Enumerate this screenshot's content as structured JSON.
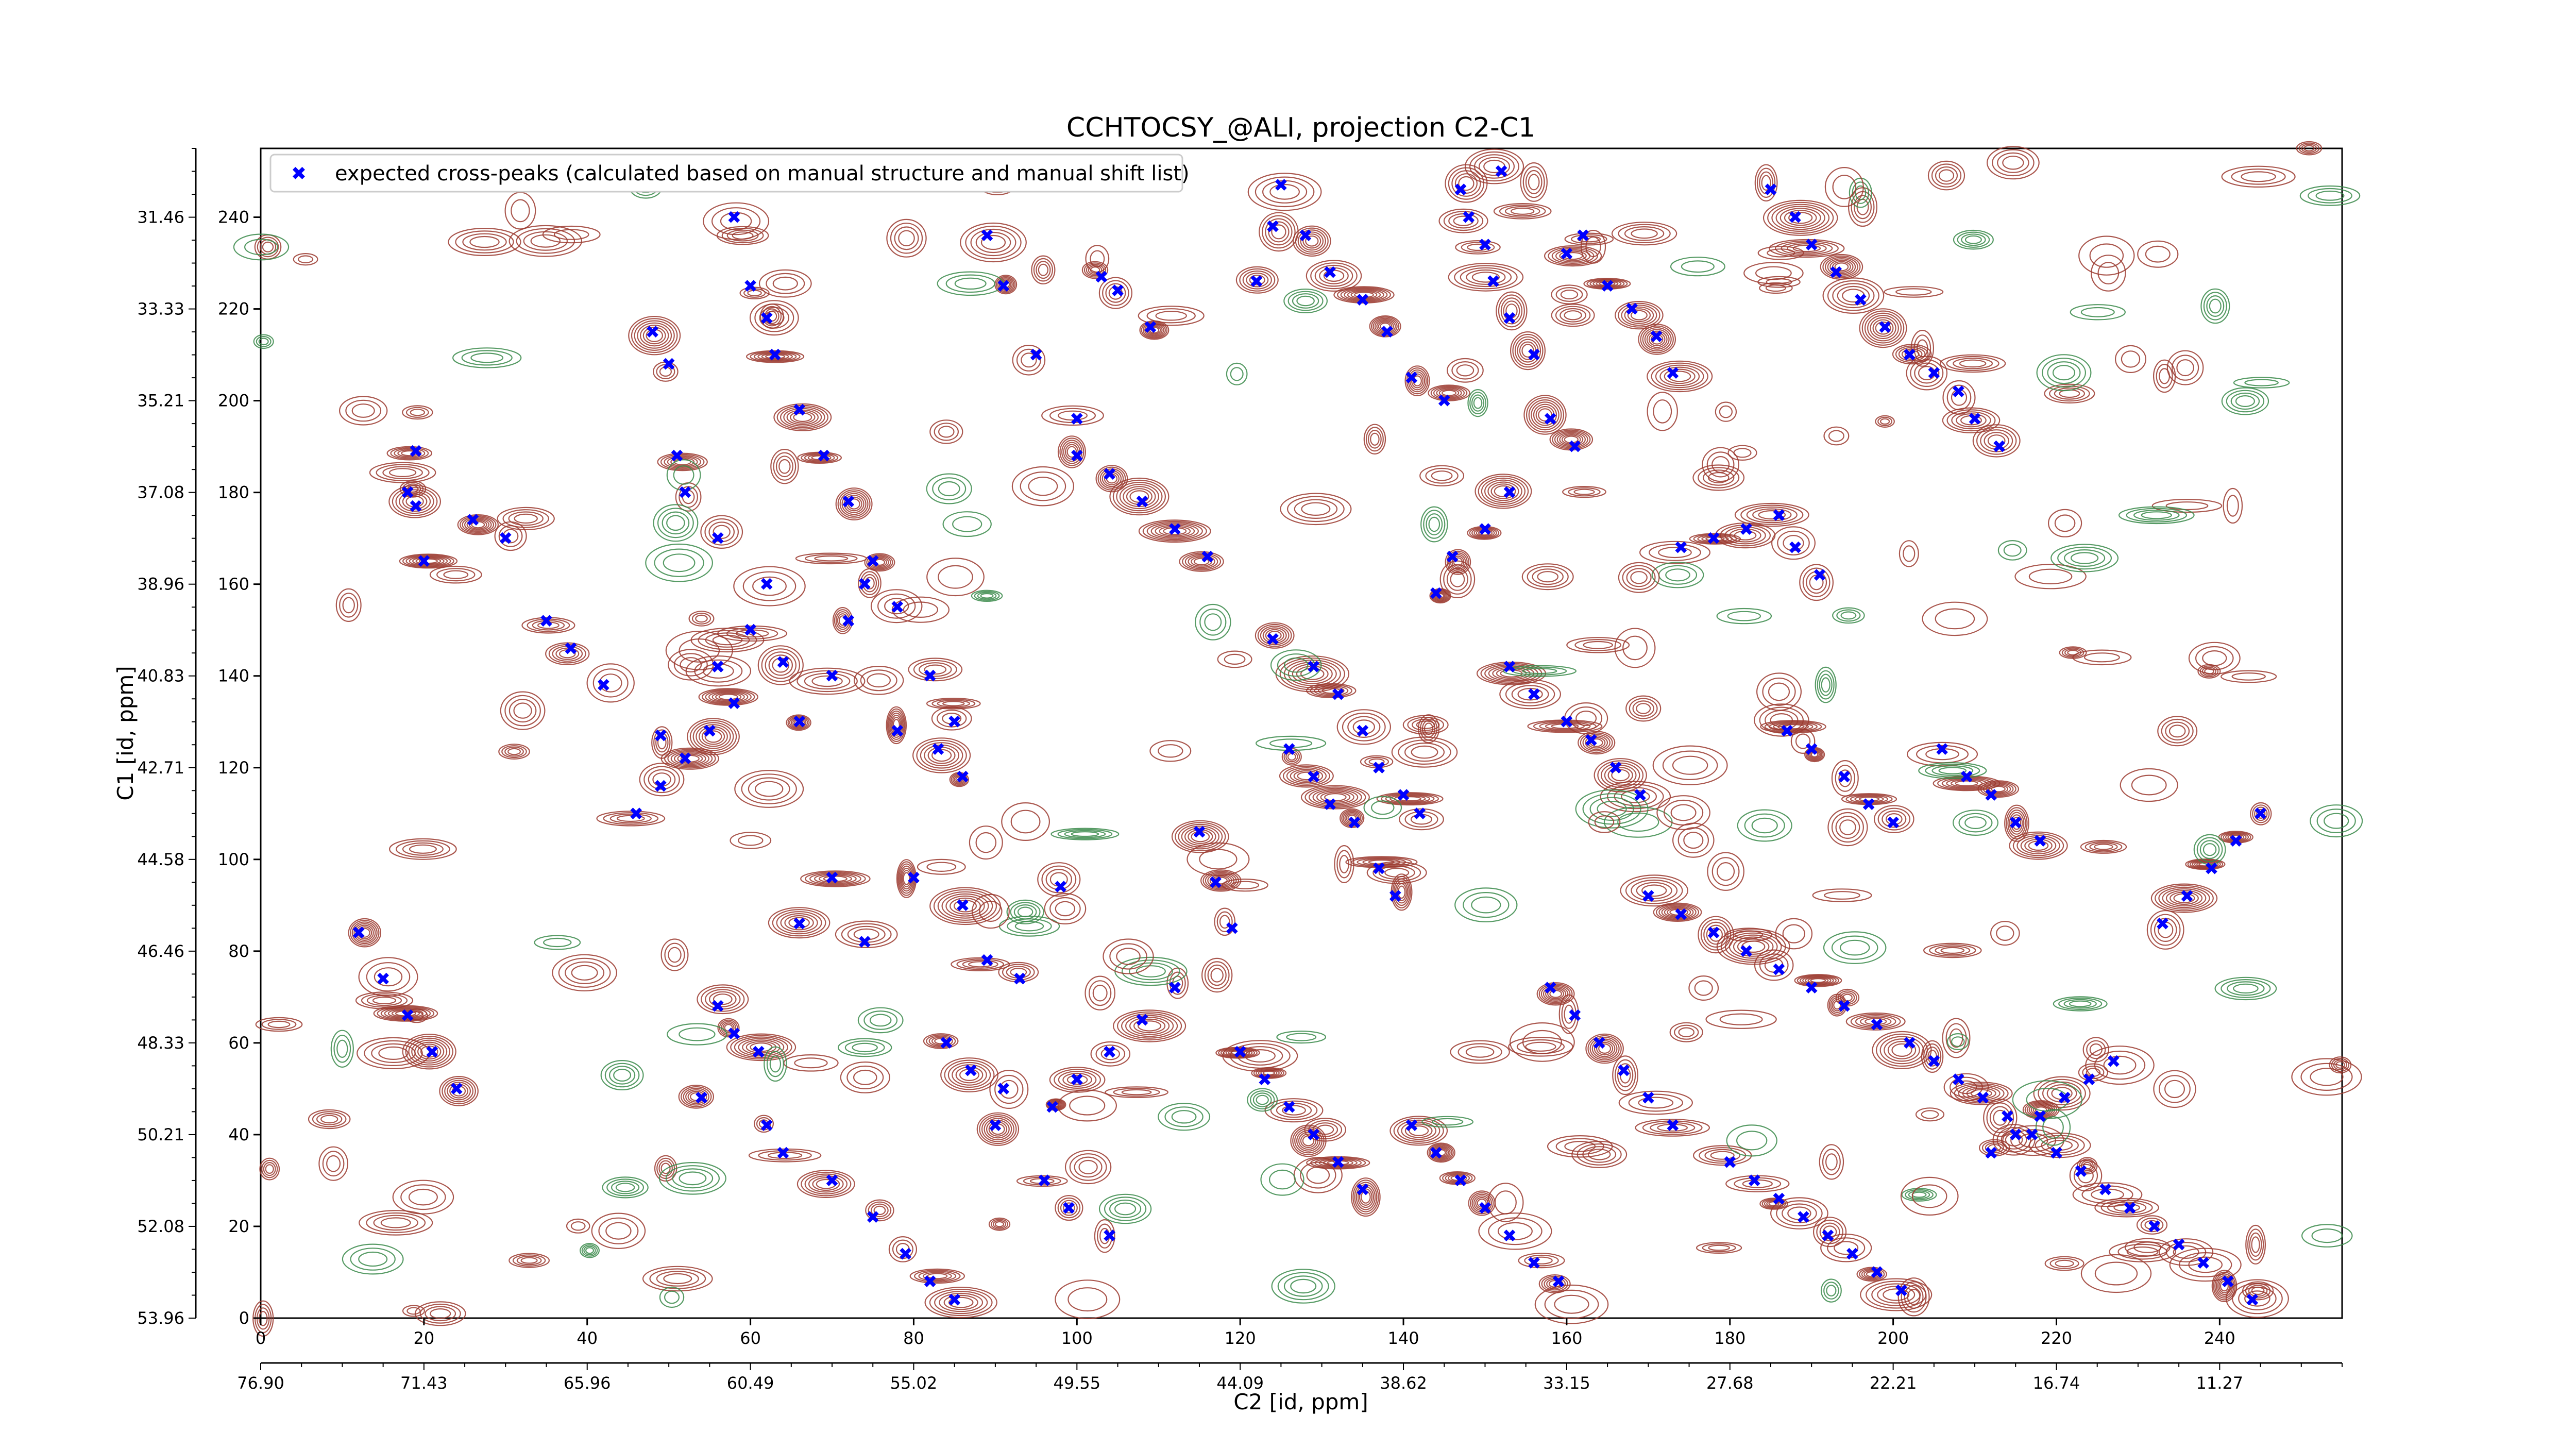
{
  "chart_data": {
    "type": "scatter",
    "title": "CCHTOCSY_@ALI, projection C2-C1",
    "xlabel": "C2 [id, ppm]",
    "ylabel": "C1 [id, ppm]",
    "xlim": [
      0,
      255
    ],
    "ylim": [
      0,
      255
    ],
    "x_index_ticks": [
      "0",
      "20",
      "40",
      "60",
      "80",
      "100",
      "120",
      "140",
      "160",
      "180",
      "200",
      "220",
      "240"
    ],
    "x_ppm_ticks": [
      "76.90",
      "71.43",
      "65.96",
      "60.49",
      "55.02",
      "49.55",
      "44.09",
      "38.62",
      "33.15",
      "27.68",
      "22.21",
      "16.74",
      "11.27"
    ],
    "y_index_ticks": [
      "0",
      "20",
      "40",
      "60",
      "80",
      "100",
      "120",
      "140",
      "160",
      "180",
      "200",
      "220",
      "240"
    ],
    "y_ppm_ticks": [
      "53.96",
      "52.08",
      "50.21",
      "48.33",
      "46.46",
      "44.58",
      "42.71",
      "40.83",
      "38.96",
      "37.08",
      "35.21",
      "33.33",
      "31.46"
    ],
    "grid": false,
    "legend_position": "top-left",
    "series": [
      {
        "name": "expected cross-peaks (calculated based on manual structure and manual shift list)",
        "color": "#0000ff",
        "marker": "x",
        "points": [
          [
            19,
            189
          ],
          [
            18,
            180
          ],
          [
            19,
            177
          ],
          [
            20,
            165
          ],
          [
            48,
            215
          ],
          [
            50,
            208
          ],
          [
            51,
            188
          ],
          [
            56,
            142
          ],
          [
            49,
            127
          ],
          [
            63,
            210
          ],
          [
            66,
            198
          ],
          [
            69,
            188
          ],
          [
            72,
            178
          ],
          [
            75,
            165
          ],
          [
            78,
            155
          ],
          [
            82,
            140
          ],
          [
            85,
            130
          ],
          [
            90,
            248
          ],
          [
            89,
            236
          ],
          [
            91,
            225
          ],
          [
            95,
            210
          ],
          [
            100,
            196
          ],
          [
            58,
            240
          ],
          [
            60,
            225
          ],
          [
            62,
            218
          ],
          [
            52,
            180
          ],
          [
            56,
            170
          ],
          [
            62,
            160
          ],
          [
            60,
            150
          ],
          [
            64,
            143
          ],
          [
            66,
            130
          ],
          [
            70,
            140
          ],
          [
            72,
            152
          ],
          [
            74,
            160
          ],
          [
            78,
            128
          ],
          [
            83,
            124
          ],
          [
            86,
            118
          ],
          [
            103,
            227
          ],
          [
            105,
            224
          ],
          [
            109,
            216
          ],
          [
            122,
            226
          ],
          [
            124,
            238
          ],
          [
            125,
            247
          ],
          [
            70,
            96
          ],
          [
            66,
            86
          ],
          [
            74,
            82
          ],
          [
            80,
            96
          ],
          [
            86,
            90
          ],
          [
            89,
            78
          ],
          [
            93,
            74
          ],
          [
            98,
            94
          ],
          [
            56,
            68
          ],
          [
            58,
            62
          ],
          [
            61,
            58
          ],
          [
            54,
            48
          ],
          [
            62,
            42
          ],
          [
            64,
            36
          ],
          [
            70,
            30
          ],
          [
            75,
            22
          ],
          [
            79,
            14
          ],
          [
            82,
            8
          ],
          [
            85,
            4
          ],
          [
            84,
            60
          ],
          [
            87,
            54
          ],
          [
            91,
            50
          ],
          [
            90,
            42
          ],
          [
            96,
            30
          ],
          [
            99,
            24
          ],
          [
            104,
            18
          ],
          [
            115,
            106
          ],
          [
            117,
            95
          ],
          [
            119,
            85
          ],
          [
            112,
            72
          ],
          [
            108,
            65
          ],
          [
            104,
            58
          ],
          [
            100,
            52
          ],
          [
            97,
            46
          ],
          [
            126,
            124
          ],
          [
            129,
            118
          ],
          [
            131,
            112
          ],
          [
            134,
            108
          ],
          [
            137,
            98
          ],
          [
            139,
            92
          ],
          [
            124,
            148
          ],
          [
            129,
            142
          ],
          [
            132,
            136
          ],
          [
            135,
            128
          ],
          [
            137,
            120
          ],
          [
            140,
            114
          ],
          [
            142,
            110
          ],
          [
            144,
            158
          ],
          [
            146,
            166
          ],
          [
            150,
            172
          ],
          [
            153,
            180
          ],
          [
            128,
            236
          ],
          [
            131,
            228
          ],
          [
            135,
            222
          ],
          [
            138,
            215
          ],
          [
            141,
            205
          ],
          [
            145,
            200
          ],
          [
            151,
            226
          ],
          [
            153,
            218
          ],
          [
            156,
            210
          ],
          [
            158,
            196
          ],
          [
            161,
            190
          ],
          [
            160,
            232
          ],
          [
            162,
            236
          ],
          [
            165,
            225
          ],
          [
            168,
            220
          ],
          [
            171,
            214
          ],
          [
            173,
            206
          ],
          [
            147,
            246
          ],
          [
            148,
            240
          ],
          [
            150,
            234
          ],
          [
            152,
            250
          ],
          [
            185,
            246
          ],
          [
            188,
            240
          ],
          [
            190,
            234
          ],
          [
            193,
            228
          ],
          [
            196,
            222
          ],
          [
            199,
            216
          ],
          [
            202,
            210
          ],
          [
            205,
            206
          ],
          [
            208,
            202
          ],
          [
            210,
            196
          ],
          [
            213,
            190
          ],
          [
            174,
            168
          ],
          [
            178,
            170
          ],
          [
            182,
            172
          ],
          [
            186,
            175
          ],
          [
            188,
            168
          ],
          [
            191,
            162
          ],
          [
            153,
            142
          ],
          [
            156,
            136
          ],
          [
            160,
            130
          ],
          [
            163,
            126
          ],
          [
            166,
            120
          ],
          [
            169,
            114
          ],
          [
            187,
            128
          ],
          [
            190,
            124
          ],
          [
            194,
            118
          ],
          [
            197,
            112
          ],
          [
            200,
            108
          ],
          [
            206,
            124
          ],
          [
            209,
            118
          ],
          [
            212,
            114
          ],
          [
            215,
            108
          ],
          [
            218,
            104
          ],
          [
            170,
            92
          ],
          [
            174,
            88
          ],
          [
            178,
            84
          ],
          [
            182,
            80
          ],
          [
            186,
            76
          ],
          [
            190,
            72
          ],
          [
            194,
            68
          ],
          [
            198,
            64
          ],
          [
            202,
            60
          ],
          [
            205,
            56
          ],
          [
            208,
            52
          ],
          [
            211,
            48
          ],
          [
            214,
            44
          ],
          [
            217,
            40
          ],
          [
            220,
            36
          ],
          [
            223,
            32
          ],
          [
            226,
            28
          ],
          [
            229,
            24
          ],
          [
            232,
            20
          ],
          [
            235,
            16
          ],
          [
            238,
            12
          ],
          [
            241,
            8
          ],
          [
            244,
            4
          ],
          [
            158,
            72
          ],
          [
            161,
            66
          ],
          [
            164,
            60
          ],
          [
            167,
            54
          ],
          [
            170,
            48
          ],
          [
            173,
            42
          ],
          [
            180,
            34
          ],
          [
            183,
            30
          ],
          [
            186,
            26
          ],
          [
            189,
            22
          ],
          [
            192,
            18
          ],
          [
            195,
            14
          ],
          [
            198,
            10
          ],
          [
            201,
            6
          ],
          [
            212,
            36
          ],
          [
            215,
            40
          ],
          [
            218,
            44
          ],
          [
            221,
            48
          ],
          [
            224,
            52
          ],
          [
            227,
            56
          ],
          [
            141,
            42
          ],
          [
            144,
            36
          ],
          [
            147,
            30
          ],
          [
            150,
            24
          ],
          [
            153,
            18
          ],
          [
            156,
            12
          ],
          [
            159,
            8
          ],
          [
            120,
            58
          ],
          [
            123,
            52
          ],
          [
            126,
            46
          ],
          [
            129,
            40
          ],
          [
            132,
            34
          ],
          [
            135,
            28
          ],
          [
            233,
            86
          ],
          [
            236,
            92
          ],
          [
            239,
            98
          ],
          [
            242,
            104
          ],
          [
            245,
            110
          ],
          [
            26,
            174
          ],
          [
            30,
            170
          ],
          [
            35,
            152
          ],
          [
            38,
            146
          ],
          [
            42,
            138
          ],
          [
            12,
            84
          ],
          [
            15,
            74
          ],
          [
            18,
            66
          ],
          [
            21,
            58
          ],
          [
            24,
            50
          ],
          [
            100,
            188
          ],
          [
            104,
            184
          ],
          [
            108,
            178
          ],
          [
            112,
            172
          ],
          [
            116,
            166
          ],
          [
            46,
            110
          ],
          [
            49,
            116
          ],
          [
            52,
            122
          ],
          [
            55,
            128
          ],
          [
            58,
            134
          ]
        ]
      }
    ]
  }
}
